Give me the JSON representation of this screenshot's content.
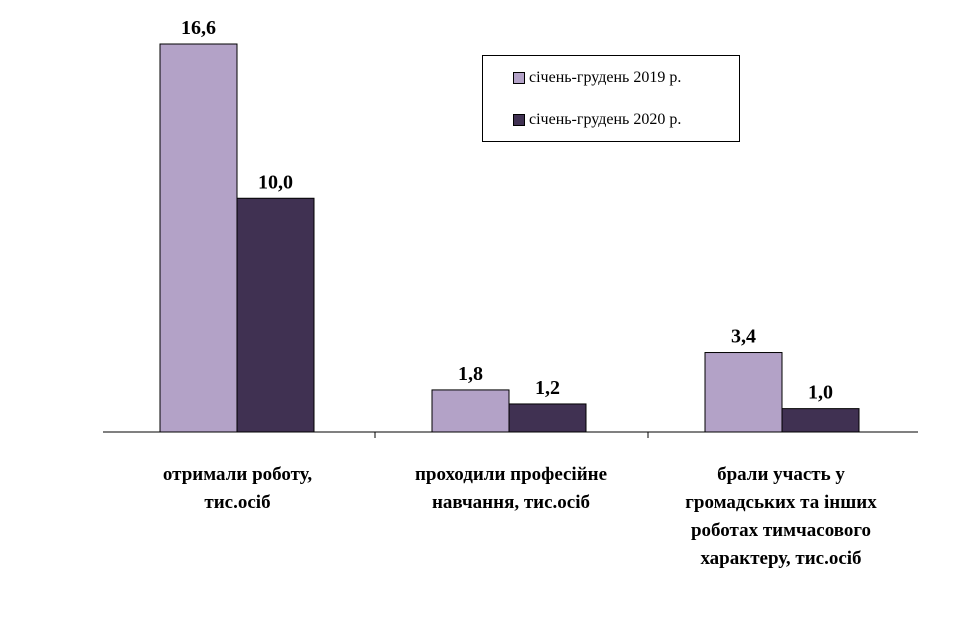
{
  "chart_data": {
    "type": "bar",
    "categories": [
      "отримали роботу,\nтис.осіб",
      "проходили професійне\nнавчання, тис.осіб",
      "брали участь у\nгромадських та інших\nроботах тимчасового\nхарактеру, тис.осіб"
    ],
    "series": [
      {
        "name": "січень-грудень  2019 р.",
        "color": "#b3a2c7",
        "values": [
          16.6,
          1.8,
          3.4
        ],
        "labels": [
          "16,6",
          "1,8",
          "3,4"
        ]
      },
      {
        "name": "січень-грудень  2020 р.",
        "color": "#403152",
        "values": [
          10.0,
          1.2,
          1.0
        ],
        "labels": [
          "10,0",
          "1,2",
          "1,0"
        ]
      }
    ],
    "ylim": [
      0,
      16.6
    ],
    "grid": false,
    "legend_position": "top-right"
  }
}
